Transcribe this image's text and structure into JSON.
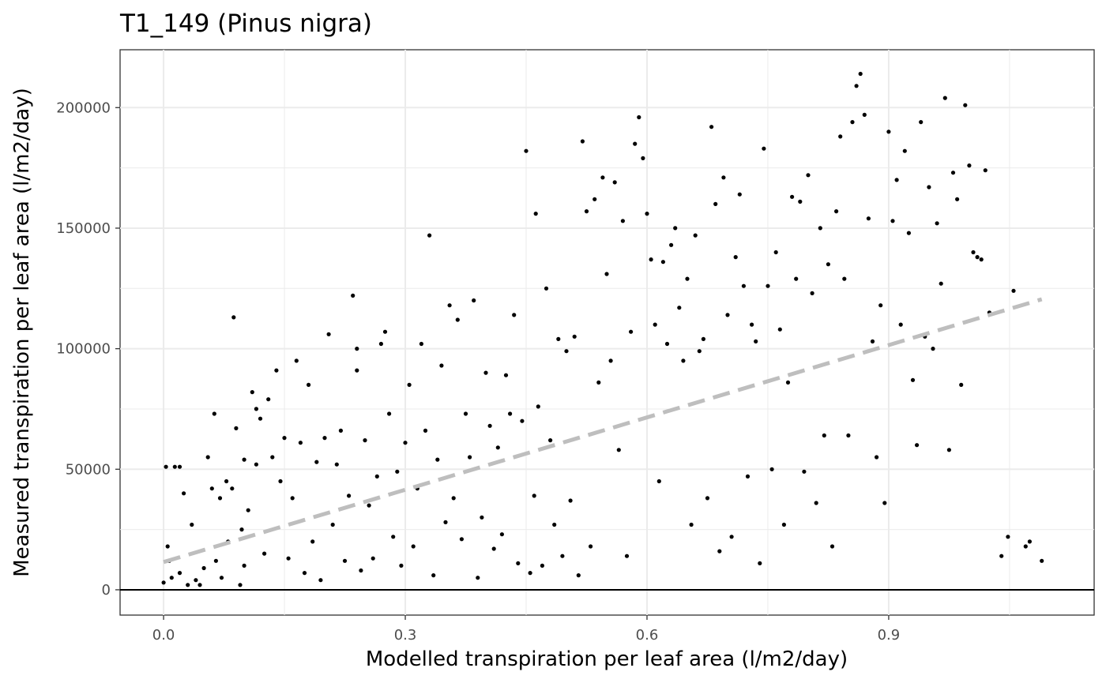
{
  "chart_data": {
    "type": "scatter",
    "title": "T1_149 (Pinus nigra)",
    "xlabel": "Modelled transpiration per leaf area (l/m2/day)",
    "ylabel": "Measured transpiration per leaf area (l/m2/day)",
    "xlim": [
      -0.054,
      1.155
    ],
    "ylim": [
      -10500,
      224000
    ],
    "x_ticks": [
      "0.0",
      "0.3",
      "0.6",
      "0.9"
    ],
    "y_ticks": [
      "0",
      "50000",
      "100000",
      "150000",
      "200000"
    ],
    "grid": true,
    "reference_line": {
      "style": "solid",
      "color": "#000000",
      "y": 0
    },
    "trend_line": {
      "style": "dashed",
      "color": "#bebebe",
      "x": [
        0.0,
        1.09
      ],
      "y": [
        11500,
        120500
      ]
    },
    "series": [
      {
        "color": "#000000",
        "points": [
          [
            0.0,
            3000
          ],
          [
            0.003,
            51000
          ],
          [
            0.005,
            18000
          ],
          [
            0.007,
            12000
          ],
          [
            0.01,
            5000
          ],
          [
            0.014,
            51000
          ],
          [
            0.02,
            7000
          ],
          [
            0.02,
            51000
          ],
          [
            0.025,
            40000
          ],
          [
            0.03,
            2000
          ],
          [
            0.035,
            27000
          ],
          [
            0.04,
            4000
          ],
          [
            0.045,
            2000
          ],
          [
            0.05,
            9000
          ],
          [
            0.055,
            55000
          ],
          [
            0.06,
            42000
          ],
          [
            0.063,
            73000
          ],
          [
            0.065,
            12000
          ],
          [
            0.07,
            38000
          ],
          [
            0.072,
            5000
          ],
          [
            0.078,
            45000
          ],
          [
            0.08,
            20000
          ],
          [
            0.085,
            42000
          ],
          [
            0.087,
            113000
          ],
          [
            0.09,
            67000
          ],
          [
            0.095,
            2000
          ],
          [
            0.097,
            25000
          ],
          [
            0.1,
            54000
          ],
          [
            0.1,
            10000
          ],
          [
            0.105,
            33000
          ],
          [
            0.11,
            82000
          ],
          [
            0.115,
            52000
          ],
          [
            0.115,
            75000
          ],
          [
            0.12,
            71000
          ],
          [
            0.125,
            15000
          ],
          [
            0.13,
            79000
          ],
          [
            0.135,
            55000
          ],
          [
            0.14,
            91000
          ],
          [
            0.145,
            45000
          ],
          [
            0.15,
            63000
          ],
          [
            0.155,
            13000
          ],
          [
            0.16,
            38000
          ],
          [
            0.165,
            95000
          ],
          [
            0.17,
            61000
          ],
          [
            0.175,
            7000
          ],
          [
            0.18,
            85000
          ],
          [
            0.185,
            20000
          ],
          [
            0.19,
            53000
          ],
          [
            0.195,
            4000
          ],
          [
            0.2,
            63000
          ],
          [
            0.205,
            106000
          ],
          [
            0.21,
            27000
          ],
          [
            0.215,
            52000
          ],
          [
            0.22,
            66000
          ],
          [
            0.225,
            12000
          ],
          [
            0.23,
            39000
          ],
          [
            0.235,
            122000
          ],
          [
            0.24,
            91000
          ],
          [
            0.24,
            100000
          ],
          [
            0.245,
            8000
          ],
          [
            0.25,
            62000
          ],
          [
            0.255,
            35000
          ],
          [
            0.26,
            13000
          ],
          [
            0.265,
            47000
          ],
          [
            0.27,
            102000
          ],
          [
            0.275,
            107000
          ],
          [
            0.28,
            73000
          ],
          [
            0.285,
            22000
          ],
          [
            0.29,
            49000
          ],
          [
            0.295,
            10000
          ],
          [
            0.3,
            61000
          ],
          [
            0.305,
            85000
          ],
          [
            0.31,
            18000
          ],
          [
            0.315,
            42000
          ],
          [
            0.32,
            102000
          ],
          [
            0.325,
            66000
          ],
          [
            0.33,
            147000
          ],
          [
            0.335,
            6000
          ],
          [
            0.34,
            54000
          ],
          [
            0.345,
            93000
          ],
          [
            0.35,
            28000
          ],
          [
            0.355,
            118000
          ],
          [
            0.36,
            38000
          ],
          [
            0.365,
            112000
          ],
          [
            0.37,
            21000
          ],
          [
            0.375,
            73000
          ],
          [
            0.38,
            55000
          ],
          [
            0.385,
            120000
          ],
          [
            0.39,
            5000
          ],
          [
            0.395,
            30000
          ],
          [
            0.4,
            90000
          ],
          [
            0.405,
            68000
          ],
          [
            0.41,
            17000
          ],
          [
            0.415,
            59000
          ],
          [
            0.42,
            23000
          ],
          [
            0.425,
            89000
          ],
          [
            0.43,
            73000
          ],
          [
            0.435,
            114000
          ],
          [
            0.44,
            11000
          ],
          [
            0.445,
            70000
          ],
          [
            0.45,
            182000
          ],
          [
            0.455,
            7000
          ],
          [
            0.46,
            39000
          ],
          [
            0.462,
            156000
          ],
          [
            0.465,
            76000
          ],
          [
            0.47,
            10000
          ],
          [
            0.475,
            125000
          ],
          [
            0.48,
            62000
          ],
          [
            0.485,
            27000
          ],
          [
            0.49,
            104000
          ],
          [
            0.495,
            14000
          ],
          [
            0.5,
            99000
          ],
          [
            0.505,
            37000
          ],
          [
            0.51,
            105000
          ],
          [
            0.515,
            6000
          ],
          [
            0.52,
            186000
          ],
          [
            0.525,
            157000
          ],
          [
            0.53,
            18000
          ],
          [
            0.535,
            162000
          ],
          [
            0.54,
            86000
          ],
          [
            0.545,
            171000
          ],
          [
            0.55,
            131000
          ],
          [
            0.555,
            95000
          ],
          [
            0.56,
            169000
          ],
          [
            0.565,
            58000
          ],
          [
            0.57,
            153000
          ],
          [
            0.575,
            14000
          ],
          [
            0.58,
            107000
          ],
          [
            0.585,
            185000
          ],
          [
            0.59,
            196000
          ],
          [
            0.595,
            179000
          ],
          [
            0.6,
            156000
          ],
          [
            0.605,
            137000
          ],
          [
            0.61,
            110000
          ],
          [
            0.615,
            45000
          ],
          [
            0.62,
            136000
          ],
          [
            0.625,
            102000
          ],
          [
            0.63,
            143000
          ],
          [
            0.635,
            150000
          ],
          [
            0.64,
            117000
          ],
          [
            0.645,
            95000
          ],
          [
            0.65,
            129000
          ],
          [
            0.655,
            27000
          ],
          [
            0.66,
            147000
          ],
          [
            0.665,
            99000
          ],
          [
            0.67,
            104000
          ],
          [
            0.675,
            38000
          ],
          [
            0.68,
            192000
          ],
          [
            0.685,
            160000
          ],
          [
            0.69,
            16000
          ],
          [
            0.695,
            171000
          ],
          [
            0.7,
            114000
          ],
          [
            0.705,
            22000
          ],
          [
            0.71,
            138000
          ],
          [
            0.715,
            164000
          ],
          [
            0.72,
            126000
          ],
          [
            0.725,
            47000
          ],
          [
            0.73,
            110000
          ],
          [
            0.735,
            103000
          ],
          [
            0.74,
            11000
          ],
          [
            0.745,
            183000
          ],
          [
            0.75,
            126000
          ],
          [
            0.755,
            50000
          ],
          [
            0.76,
            140000
          ],
          [
            0.765,
            108000
          ],
          [
            0.77,
            27000
          ],
          [
            0.775,
            86000
          ],
          [
            0.78,
            163000
          ],
          [
            0.785,
            129000
          ],
          [
            0.79,
            161000
          ],
          [
            0.795,
            49000
          ],
          [
            0.8,
            172000
          ],
          [
            0.805,
            123000
          ],
          [
            0.81,
            36000
          ],
          [
            0.815,
            150000
          ],
          [
            0.82,
            64000
          ],
          [
            0.825,
            135000
          ],
          [
            0.83,
            18000
          ],
          [
            0.835,
            157000
          ],
          [
            0.84,
            188000
          ],
          [
            0.845,
            129000
          ],
          [
            0.85,
            64000
          ],
          [
            0.855,
            194000
          ],
          [
            0.86,
            209000
          ],
          [
            0.865,
            214000
          ],
          [
            0.87,
            197000
          ],
          [
            0.875,
            154000
          ],
          [
            0.88,
            103000
          ],
          [
            0.885,
            55000
          ],
          [
            0.89,
            118000
          ],
          [
            0.895,
            36000
          ],
          [
            0.9,
            190000
          ],
          [
            0.905,
            153000
          ],
          [
            0.91,
            170000
          ],
          [
            0.915,
            110000
          ],
          [
            0.92,
            182000
          ],
          [
            0.925,
            148000
          ],
          [
            0.93,
            87000
          ],
          [
            0.935,
            60000
          ],
          [
            0.94,
            194000
          ],
          [
            0.945,
            105000
          ],
          [
            0.95,
            167000
          ],
          [
            0.955,
            100000
          ],
          [
            0.96,
            152000
          ],
          [
            0.965,
            127000
          ],
          [
            0.97,
            204000
          ],
          [
            0.975,
            58000
          ],
          [
            0.98,
            173000
          ],
          [
            0.985,
            162000
          ],
          [
            0.99,
            85000
          ],
          [
            0.995,
            201000
          ],
          [
            1.0,
            176000
          ],
          [
            1.005,
            140000
          ],
          [
            1.01,
            138000
          ],
          [
            1.015,
            137000
          ],
          [
            1.02,
            174000
          ],
          [
            1.025,
            115000
          ],
          [
            1.04,
            14000
          ],
          [
            1.048,
            22000
          ],
          [
            1.055,
            124000
          ],
          [
            1.07,
            18000
          ],
          [
            1.075,
            20000
          ],
          [
            1.09,
            12000
          ]
        ]
      }
    ]
  }
}
